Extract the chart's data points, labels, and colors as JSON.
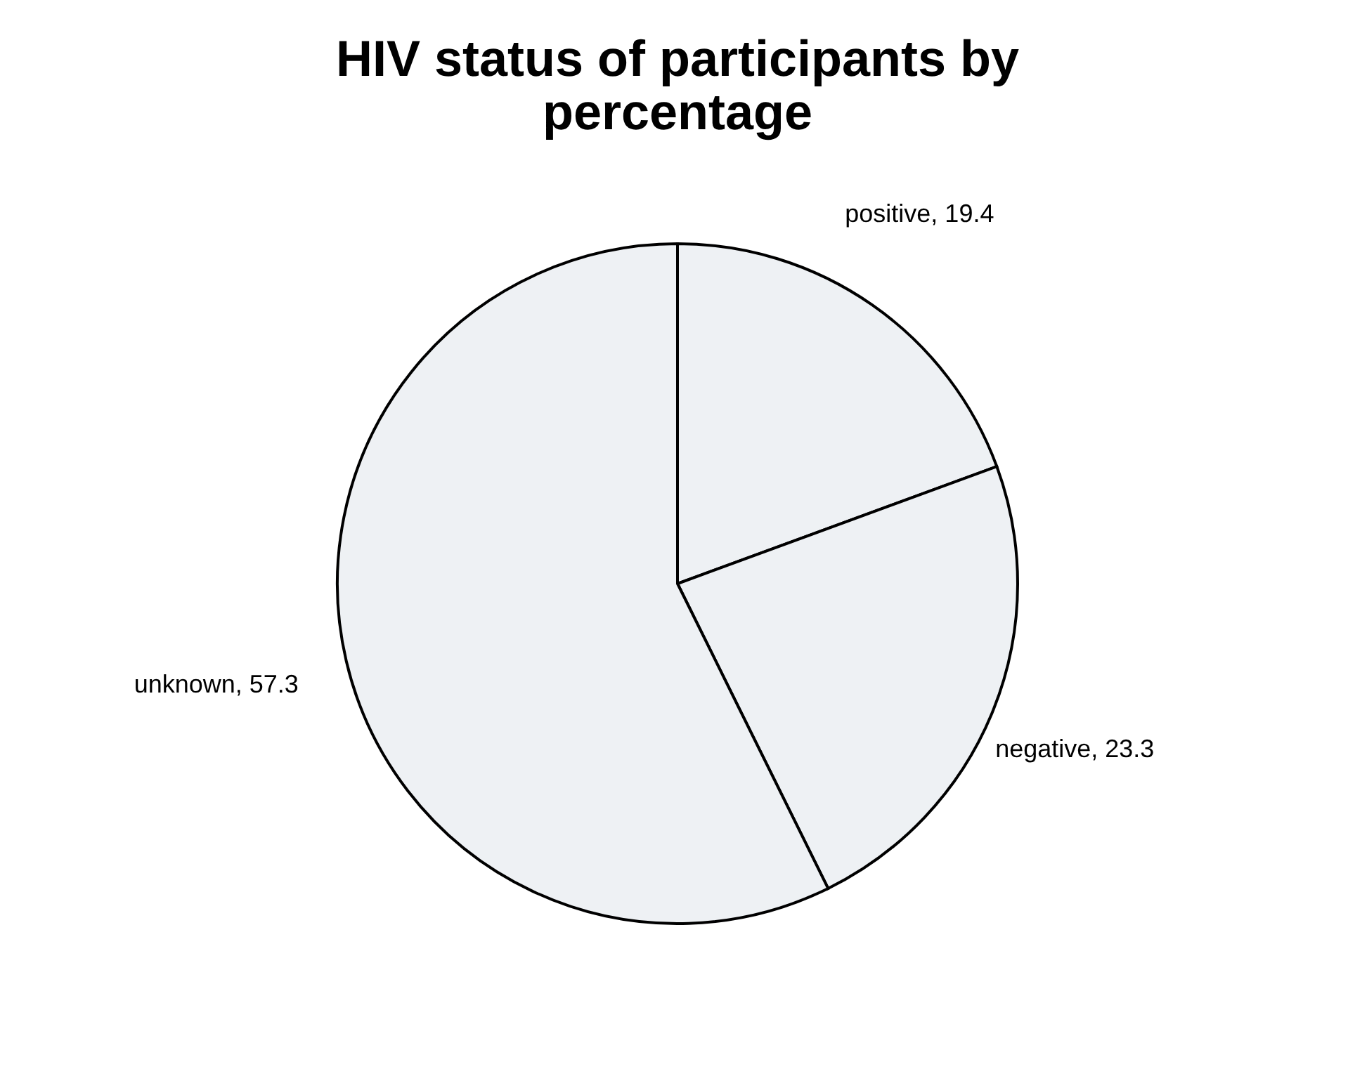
{
  "chart_data": {
    "type": "pie",
    "title": "HIV status of participants by percentage",
    "categories": [
      "positive",
      "negative",
      "unknown"
    ],
    "values": [
      19.4,
      23.3,
      57.3
    ],
    "colors": [
      "#eef1f4",
      "#eef1f4",
      "#eef1f4"
    ],
    "value_labels": [
      ", 19.4",
      ", 23.3",
      ", 57.3"
    ],
    "legend": false
  }
}
